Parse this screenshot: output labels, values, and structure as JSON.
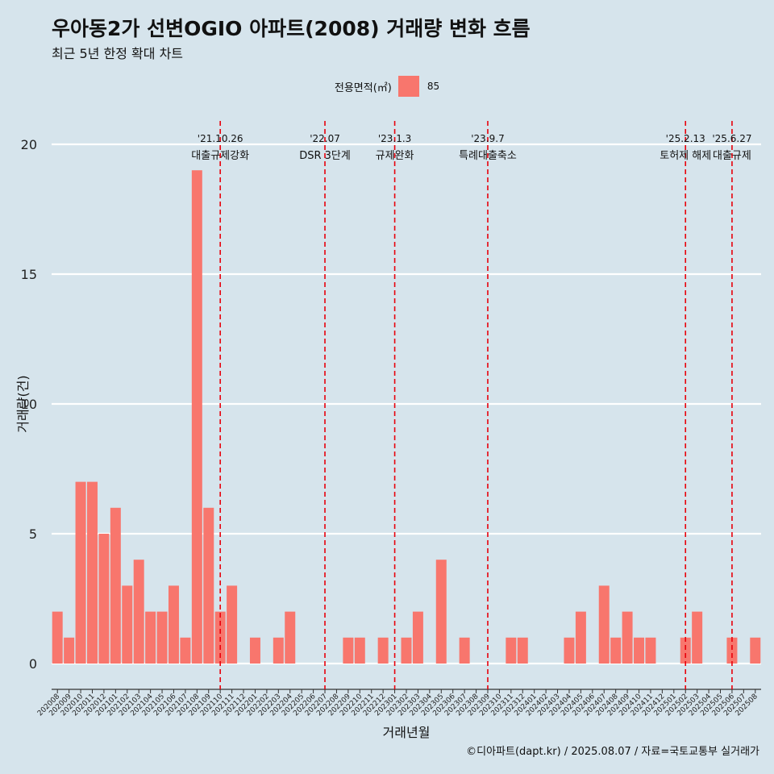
{
  "title": "우아동2가 선변OGIO 아파트(2008) 거래량 변화 흐름",
  "subtitle": "최근 5년 한정 확대 차트",
  "caption": "©디아파트(dapt.kr) / 2025.08.07 / 자료=국토교통부 실거래가",
  "legend": {
    "title": "전용면적(㎡)",
    "label": "85"
  },
  "colors": {
    "bar": "#f8766d",
    "event_line": "#e8000b",
    "grid": "#ffffff",
    "background": "#d6e4ec"
  },
  "chart_data": {
    "type": "bar",
    "xlabel": "거래년월",
    "ylabel": "거래량(건)",
    "ylim": [
      0,
      20
    ],
    "yticks": [
      0,
      5,
      10,
      15,
      20
    ],
    "categories": [
      "202008",
      "202009",
      "202010",
      "202011",
      "202012",
      "202101",
      "202102",
      "202103",
      "202104",
      "202105",
      "202106",
      "202107",
      "202108",
      "202109",
      "202110",
      "202111",
      "202112",
      "202201",
      "202202",
      "202203",
      "202204",
      "202205",
      "202206",
      "202207",
      "202208",
      "202209",
      "202210",
      "202211",
      "202212",
      "202301",
      "202302",
      "202303",
      "202304",
      "202305",
      "202306",
      "202307",
      "202308",
      "202309",
      "202310",
      "202311",
      "202312",
      "202401",
      "202402",
      "202403",
      "202404",
      "202405",
      "202406",
      "202407",
      "202408",
      "202409",
      "202410",
      "202411",
      "202412",
      "202501",
      "202502",
      "202503",
      "202504",
      "202505",
      "202506",
      "202507",
      "202508"
    ],
    "series": [
      {
        "values": [
          2,
          1,
          7,
          7,
          5,
          6,
          3,
          4,
          2,
          2,
          3,
          1,
          19,
          6,
          2,
          3,
          0,
          1,
          0,
          1,
          2,
          0,
          0,
          0,
          0,
          1,
          1,
          0,
          1,
          0,
          1,
          2,
          0,
          4,
          0,
          1,
          0,
          0,
          0,
          1,
          1,
          0,
          0,
          0,
          1,
          2,
          0,
          3,
          1,
          2,
          1,
          1,
          0,
          0,
          1,
          2,
          0,
          0,
          1,
          0,
          1
        ]
      }
    ],
    "events": [
      {
        "date": "'21.10.26",
        "label": "대출규제강화",
        "position": "202110"
      },
      {
        "date": "'22.07",
        "label": "DSR 3단계",
        "position": "202207"
      },
      {
        "date": "'23.1.3",
        "label": "규제완화",
        "position": "202301"
      },
      {
        "date": "'23.9.7",
        "label": "특례대출축소",
        "position": "202309"
      },
      {
        "date": "'25.2.13",
        "label": "토허제 해제",
        "position": "202502"
      },
      {
        "date": "'25.6.27",
        "label": "대출규제",
        "position": "202506"
      }
    ]
  }
}
